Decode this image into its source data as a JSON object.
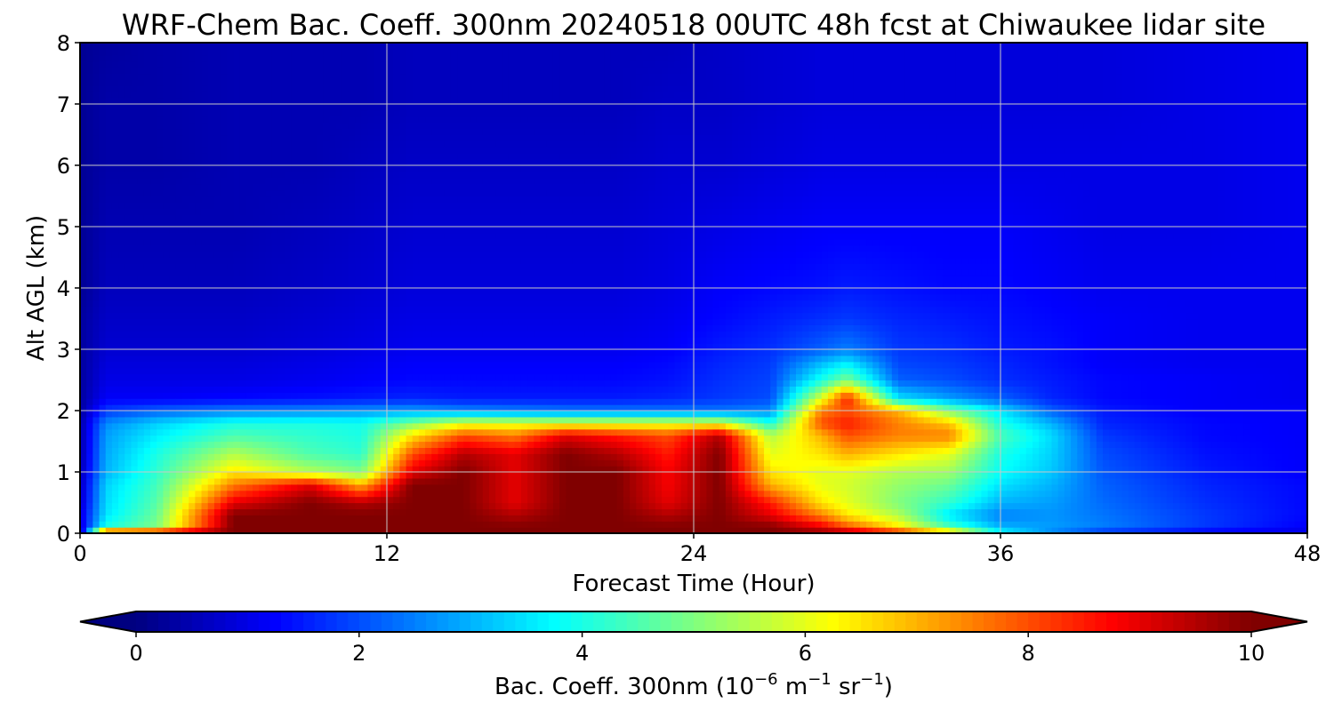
{
  "chart_data": {
    "type": "heatmap",
    "title": "WRF-Chem Bac. Coeff. 300nm  20240518 00UTC 48h fcst at Chiwaukee lidar site",
    "xlabel": "Forecast Time (Hour)",
    "ylabel": "Alt AGL (km)",
    "xlim": [
      0,
      48
    ],
    "ylim": [
      0,
      8
    ],
    "x_ticks": [
      "0",
      "12",
      "24",
      "36",
      "48"
    ],
    "y_ticks": [
      "0",
      "1",
      "2",
      "3",
      "4",
      "5",
      "6",
      "7",
      "8"
    ],
    "grid": true,
    "colormap": "jet",
    "colorbar": {
      "label_prefix": "Bac. Coeff. 300nm  (10",
      "label_exp1": "−6",
      "label_mid": " m",
      "label_exp2": "−1",
      "label_mid2": " sr",
      "label_exp3": "−1",
      "label_suffix": ")",
      "range": [
        0,
        10
      ],
      "extend": "both",
      "orientation": "horizontal",
      "ticks": [
        "0",
        "2",
        "4",
        "6",
        "8",
        "10"
      ]
    },
    "x_hours": [
      0,
      1,
      3,
      6,
      9,
      11,
      13,
      15,
      17,
      19,
      21,
      23,
      25,
      27,
      29,
      30,
      32,
      34,
      36,
      38,
      40,
      44,
      48
    ],
    "z_km": [
      0,
      0.1,
      0.3,
      0.5,
      0.8,
      1.0,
      1.3,
      1.6,
      1.8,
      2.0,
      2.2,
      2.5,
      2.8,
      3.0,
      3.5,
      4.0,
      5.0,
      6.0,
      7.0,
      8.0
    ],
    "values": [
      [
        0.3,
        0.8,
        0.9,
        0.7,
        0.6,
        0.5,
        0.4,
        0.4,
        0.4,
        0.3,
        0.3,
        0.3,
        0.3,
        0.3,
        0.3,
        0.2,
        0.2,
        0.2,
        0.2,
        0.2
      ],
      [
        10.0,
        4.0,
        3.5,
        3.4,
        3.3,
        3.0,
        2.9,
        2.8,
        2.6,
        1.8,
        1.2,
        1.0,
        0.9,
        0.8,
        0.7,
        0.6,
        0.5,
        0.4,
        0.4,
        0.3
      ],
      [
        10.0,
        5.0,
        4.8,
        4.6,
        4.4,
        4.2,
        4.0,
        3.6,
        3.3,
        2.2,
        1.2,
        1.0,
        0.9,
        0.8,
        0.7,
        0.6,
        0.5,
        0.4,
        0.4,
        0.4
      ],
      [
        10.0,
        10.0,
        10.0,
        9.0,
        7.5,
        6.5,
        5.5,
        4.5,
        4.0,
        2.5,
        1.3,
        1.0,
        0.9,
        0.8,
        0.7,
        0.6,
        0.5,
        0.5,
        0.5,
        0.5
      ],
      [
        10.0,
        10.0,
        10.0,
        10.0,
        9.0,
        5.5,
        4.5,
        4.2,
        4.0,
        2.6,
        1.4,
        1.1,
        1.0,
        0.9,
        0.8,
        0.7,
        0.6,
        0.5,
        0.5,
        0.5
      ],
      [
        10.0,
        10.0,
        10.0,
        9.5,
        7.0,
        5.0,
        4.2,
        4.0,
        3.9,
        2.7,
        1.5,
        1.2,
        1.1,
        1.0,
        0.9,
        0.8,
        0.7,
        0.6,
        0.5,
        0.5
      ],
      [
        10.0,
        10.0,
        10.0,
        10.0,
        10.0,
        9.0,
        8.0,
        6.5,
        5.0,
        2.8,
        1.6,
        1.3,
        1.2,
        1.1,
        1.0,
        0.9,
        0.8,
        0.7,
        0.6,
        0.6
      ],
      [
        10.0,
        10.0,
        10.0,
        10.0,
        10.0,
        10.0,
        9.5,
        8.0,
        6.0,
        2.6,
        1.5,
        1.3,
        1.2,
        1.1,
        1.0,
        0.9,
        0.8,
        0.7,
        0.6,
        0.6
      ],
      [
        10.0,
        10.0,
        9.5,
        9.0,
        9.0,
        9.0,
        9.0,
        7.5,
        6.0,
        2.5,
        1.5,
        1.3,
        1.2,
        1.1,
        1.0,
        0.9,
        0.8,
        0.7,
        0.6,
        0.6
      ],
      [
        10.0,
        10.0,
        10.0,
        10.0,
        10.0,
        10.0,
        10.0,
        9.0,
        6.0,
        2.4,
        1.5,
        1.3,
        1.2,
        1.1,
        1.0,
        0.9,
        0.8,
        0.7,
        0.6,
        0.6
      ],
      [
        10.0,
        10.0,
        10.0,
        10.0,
        10.0,
        10.0,
        9.5,
        8.5,
        6.0,
        2.4,
        1.5,
        1.3,
        1.2,
        1.1,
        1.0,
        0.9,
        0.8,
        0.7,
        0.6,
        0.6
      ],
      [
        10.0,
        10.0,
        9.5,
        9.0,
        8.8,
        8.8,
        8.5,
        8.0,
        6.0,
        2.4,
        1.6,
        1.4,
        1.3,
        1.2,
        1.1,
        1.0,
        0.9,
        0.8,
        0.7,
        0.6
      ],
      [
        10.0,
        10.0,
        10.0,
        10.0,
        10.0,
        10.0,
        10.0,
        9.5,
        6.0,
        2.4,
        1.8,
        1.7,
        1.6,
        1.5,
        1.3,
        1.2,
        1.0,
        0.8,
        0.7,
        0.7
      ],
      [
        10.0,
        10.0,
        9.0,
        8.5,
        7.0,
        6.5,
        6.0,
        5.5,
        4.0,
        2.6,
        2.0,
        1.9,
        1.8,
        1.7,
        1.5,
        1.3,
        1.1,
        0.9,
        0.8,
        0.8
      ],
      [
        10.0,
        9.0,
        7.5,
        6.5,
        6.0,
        6.0,
        6.5,
        7.0,
        8.0,
        7.5,
        6.0,
        4.0,
        3.0,
        2.2,
        1.7,
        1.4,
        1.2,
        1.0,
        0.9,
        0.9
      ],
      [
        10.0,
        8.0,
        6.5,
        6.0,
        5.8,
        6.0,
        7.0,
        8.0,
        8.5,
        8.0,
        8.5,
        5.0,
        3.5,
        2.5,
        1.8,
        1.5,
        1.2,
        1.0,
        0.9,
        0.9
      ],
      [
        9.0,
        6.5,
        5.5,
        5.0,
        5.2,
        5.5,
        6.5,
        7.5,
        7.5,
        7.0,
        3.5,
        2.2,
        1.9,
        1.8,
        1.6,
        1.4,
        1.2,
        1.0,
        0.9,
        0.9
      ],
      [
        7.5,
        4.5,
        3.5,
        4.2,
        4.8,
        5.3,
        6.0,
        7.5,
        6.8,
        5.0,
        2.8,
        2.0,
        1.8,
        1.7,
        1.5,
        1.3,
        1.2,
        1.0,
        0.9,
        0.9
      ],
      [
        4.0,
        3.0,
        2.5,
        3.0,
        3.5,
        3.8,
        4.0,
        4.5,
        4.0,
        3.5,
        2.2,
        1.7,
        1.6,
        1.5,
        1.4,
        1.3,
        1.2,
        1.0,
        0.9,
        0.9
      ],
      [
        2.5,
        2.8,
        2.7,
        2.8,
        3.0,
        3.2,
        3.3,
        3.4,
        3.0,
        2.2,
        1.6,
        1.5,
        1.4,
        1.4,
        1.3,
        1.2,
        1.1,
        1.0,
        0.9,
        0.9
      ],
      [
        1.5,
        2.5,
        2.4,
        2.3,
        2.2,
        2.1,
        2.0,
        1.8,
        1.6,
        1.5,
        1.3,
        1.3,
        1.2,
        1.2,
        1.2,
        1.1,
        1.0,
        1.0,
        0.9,
        0.9
      ],
      [
        1.0,
        1.8,
        1.8,
        1.7,
        1.6,
        1.5,
        1.4,
        1.3,
        1.3,
        1.2,
        1.2,
        1.2,
        1.1,
        1.1,
        1.1,
        1.1,
        1.0,
        1.0,
        1.0,
        1.0
      ],
      [
        0.9,
        1.2,
        1.3,
        1.3,
        1.3,
        1.2,
        1.2,
        1.2,
        1.2,
        1.2,
        1.1,
        1.1,
        1.1,
        1.1,
        1.1,
        1.1,
        1.1,
        1.1,
        1.1,
        1.1
      ]
    ]
  }
}
